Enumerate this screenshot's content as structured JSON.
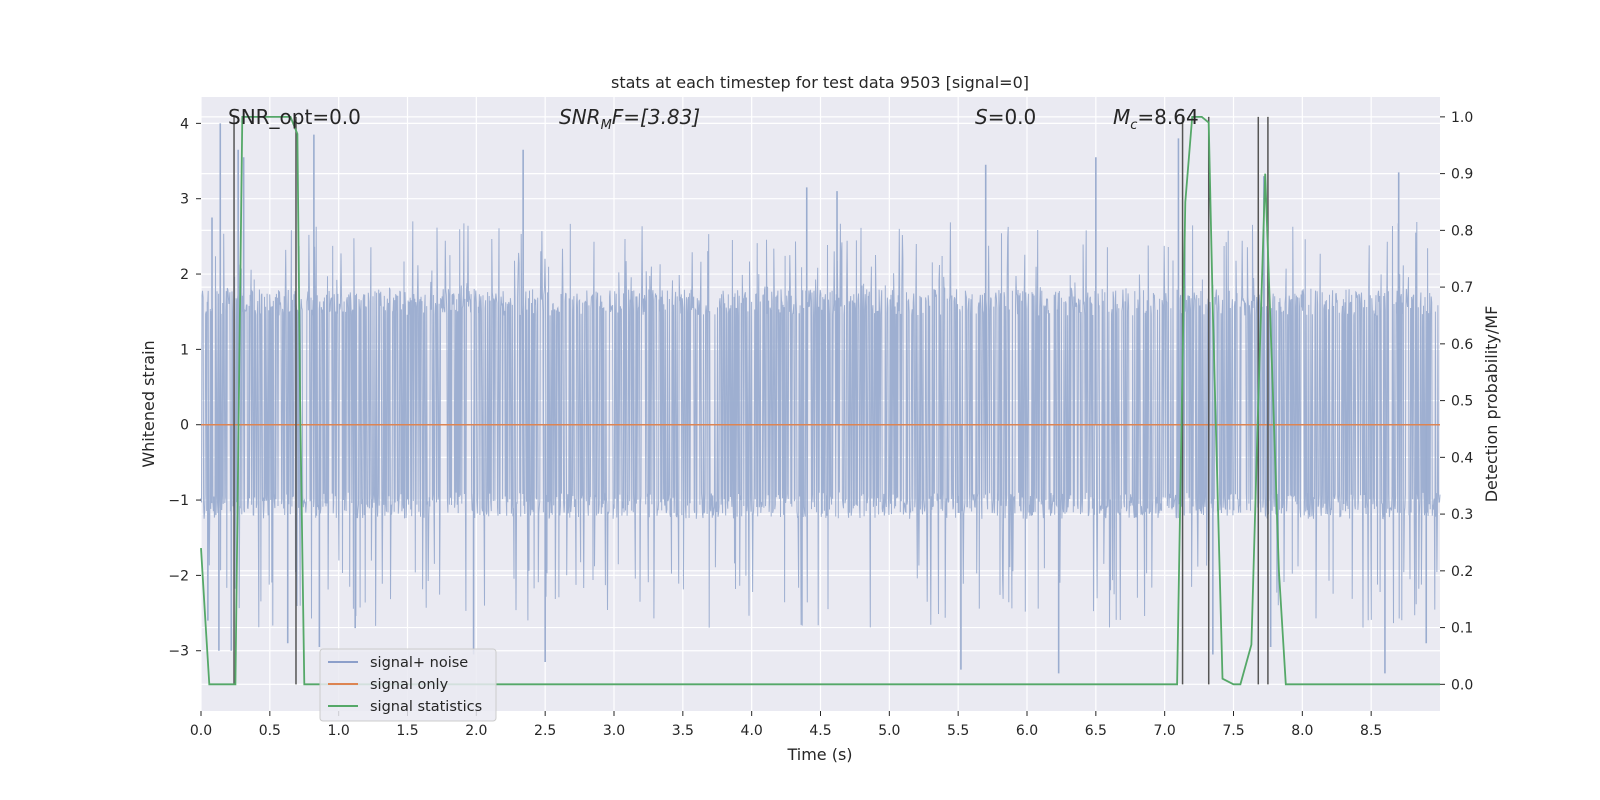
{
  "chart_data": {
    "type": "line",
    "title": "stats at each timestep for test data 9503 [signal=0]",
    "xlabel": "Time (s)",
    "ylabel": "Whitened strain",
    "y2label": "Detection probability/MF",
    "xlim": [
      0.0,
      9.0
    ],
    "ylim": [
      -3.8,
      4.35
    ],
    "y2lim": [
      -0.047,
      1.035
    ],
    "xticks": [
      0.0,
      0.5,
      1.0,
      1.5,
      2.0,
      2.5,
      3.0,
      3.5,
      4.0,
      4.5,
      5.0,
      5.5,
      6.0,
      6.5,
      7.0,
      7.5,
      8.0,
      8.5
    ],
    "yticks": [
      -3,
      -2,
      -1,
      0,
      1,
      2,
      3,
      4
    ],
    "y2ticks": [
      0.0,
      0.1,
      0.2,
      0.3,
      0.4,
      0.5,
      0.6,
      0.7,
      0.8,
      0.9,
      1.0
    ],
    "xtick_labels": [
      "0.0",
      "0.5",
      "1.0",
      "1.5",
      "2.0",
      "2.5",
      "3.0",
      "3.5",
      "4.0",
      "4.5",
      "5.0",
      "5.5",
      "6.0",
      "6.5",
      "7.0",
      "7.5",
      "8.0",
      "8.5"
    ],
    "ytick_labels": [
      "−3",
      "−2",
      "−1",
      "0",
      "1",
      "2",
      "3",
      "4"
    ],
    "y2tick_labels": [
      "0.0",
      "0.1",
      "0.2",
      "0.3",
      "0.4",
      "0.5",
      "0.6",
      "0.7",
      "0.8",
      "0.9",
      "1.0"
    ],
    "annotations": {
      "snr_opt": "SNR_opt=0.0",
      "snr_mf_base": "SNR",
      "snr_mf_sub": "M",
      "snr_mf_rest": "F=[3.83]",
      "s_italic": "S",
      "s_rest": "=0.0",
      "mc_base": "M",
      "mc_sub": "c",
      "mc_rest": "=8.64"
    },
    "legend": {
      "position": "lower-left",
      "entries": [
        {
          "label": "signal+ noise",
          "color": "#8c9fca"
        },
        {
          "label": "signal only",
          "color": "#dd8452"
        },
        {
          "label": "signal statistics",
          "color": "#55a868"
        }
      ]
    },
    "series": [
      {
        "name": "signal+ noise",
        "color": "#9aaccf",
        "axis": "left",
        "description_kind": "noise",
        "band": [
          -1.25,
          1.8
        ],
        "extremes": [
          {
            "x": 0.05,
            "y": -2.6
          },
          {
            "x": 0.08,
            "y": 2.75
          },
          {
            "x": 0.13,
            "y": -3.0
          },
          {
            "x": 0.14,
            "y": 4.0
          },
          {
            "x": 0.22,
            "y": -3.0
          },
          {
            "x": 0.27,
            "y": 3.65
          },
          {
            "x": 0.31,
            "y": 3.55
          },
          {
            "x": 0.63,
            "y": -2.9
          },
          {
            "x": 0.82,
            "y": 3.85
          },
          {
            "x": 0.86,
            "y": -2.95
          },
          {
            "x": 1.12,
            "y": -2.7
          },
          {
            "x": 1.98,
            "y": -3.05
          },
          {
            "x": 2.34,
            "y": 3.65
          },
          {
            "x": 2.5,
            "y": -3.15
          },
          {
            "x": 4.4,
            "y": 3.15
          },
          {
            "x": 4.62,
            "y": 3.1
          },
          {
            "x": 5.52,
            "y": -3.25
          },
          {
            "x": 5.7,
            "y": 3.45
          },
          {
            "x": 6.23,
            "y": -3.3
          },
          {
            "x": 6.5,
            "y": 3.55
          },
          {
            "x": 7.1,
            "y": 3.8
          },
          {
            "x": 7.35,
            "y": -3.05
          },
          {
            "x": 7.72,
            "y": 3.3
          },
          {
            "x": 7.77,
            "y": -2.95
          },
          {
            "x": 8.6,
            "y": -3.3
          },
          {
            "x": 8.7,
            "y": 3.35
          },
          {
            "x": 8.9,
            "y": -2.9
          }
        ]
      },
      {
        "name": "signal only",
        "color": "#dd8452",
        "axis": "left",
        "x": [
          0.0,
          9.0
        ],
        "y": [
          0.0,
          0.0
        ]
      },
      {
        "name": "signal statistics",
        "color": "#55a868",
        "axis": "right",
        "x": [
          0.0,
          0.03,
          0.06,
          0.1,
          0.2,
          0.25,
          0.3,
          0.65,
          0.7,
          0.72,
          0.75,
          7.05,
          7.09,
          7.15,
          7.2,
          7.27,
          7.32,
          7.35,
          7.42,
          7.5,
          7.55,
          7.63,
          7.68,
          7.73,
          7.78,
          7.83,
          7.88,
          9.0
        ],
        "y": [
          0.24,
          0.12,
          0.0,
          0.0,
          0.0,
          0.0,
          1.0,
          1.0,
          0.97,
          0.5,
          0.0,
          0.0,
          0.0,
          0.85,
          1.0,
          1.0,
          0.99,
          0.66,
          0.01,
          0.0,
          0.0,
          0.07,
          0.5,
          0.9,
          0.56,
          0.2,
          0.0,
          0.0
        ]
      }
    ],
    "vertical_markers": [
      0.24,
      0.69,
      7.13,
      7.32,
      7.68,
      7.75
    ]
  }
}
